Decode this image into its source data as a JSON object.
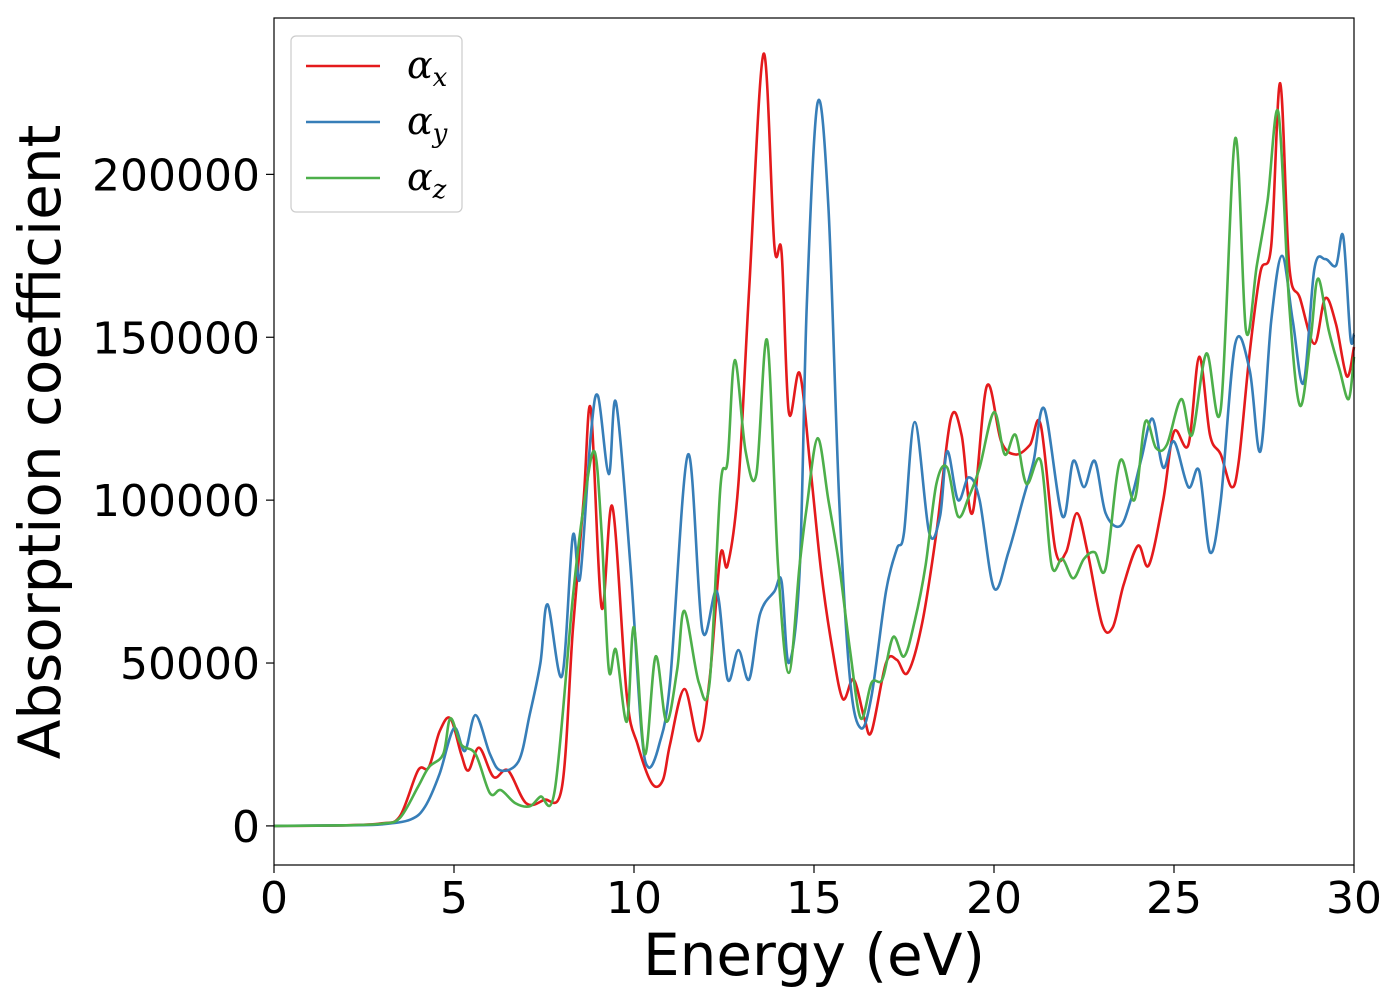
{
  "chart_data": {
    "type": "line",
    "title": "",
    "xlabel": "Energy (eV)",
    "ylabel": "Absorption coefficient",
    "xlim": [
      0,
      30
    ],
    "ylim": [
      -12000,
      248000
    ],
    "xticks": [
      0,
      5,
      10,
      15,
      20,
      25,
      30
    ],
    "yticks": [
      0,
      50000,
      100000,
      150000,
      200000
    ],
    "legend_position": "top-left",
    "series": [
      {
        "name": "αx",
        "symbol": "α",
        "subscript": "x",
        "color": "#e41a1c",
        "points": [
          [
            0,
            0
          ],
          [
            2,
            200
          ],
          [
            3,
            800
          ],
          [
            3.5,
            3000
          ],
          [
            4,
            17000
          ],
          [
            4.3,
            18000
          ],
          [
            4.6,
            29000
          ],
          [
            4.9,
            33000
          ],
          [
            5.2,
            22000
          ],
          [
            5.4,
            17000
          ],
          [
            5.7,
            24000
          ],
          [
            6.1,
            15000
          ],
          [
            6.5,
            17000
          ],
          [
            7,
            7000
          ],
          [
            7.5,
            8000
          ],
          [
            8,
            12000
          ],
          [
            8.3,
            60000
          ],
          [
            8.6,
            100000
          ],
          [
            8.8,
            128000
          ],
          [
            9.1,
            67000
          ],
          [
            9.4,
            98000
          ],
          [
            9.8,
            40000
          ],
          [
            10.1,
            25000
          ],
          [
            10.5,
            13000
          ],
          [
            10.8,
            14000
          ],
          [
            11,
            25000
          ],
          [
            11.4,
            42000
          ],
          [
            11.8,
            26000
          ],
          [
            12.1,
            45000
          ],
          [
            12.4,
            83000
          ],
          [
            12.6,
            80000
          ],
          [
            12.9,
            105000
          ],
          [
            13.2,
            165000
          ],
          [
            13.6,
            237000
          ],
          [
            13.9,
            178000
          ],
          [
            14.1,
            176000
          ],
          [
            14.3,
            127000
          ],
          [
            14.6,
            139000
          ],
          [
            14.9,
            110000
          ],
          [
            15.2,
            78000
          ],
          [
            15.5,
            55000
          ],
          [
            15.8,
            39000
          ],
          [
            16.1,
            45000
          ],
          [
            16.4,
            33000
          ],
          [
            16.6,
            29000
          ],
          [
            17,
            50000
          ],
          [
            17.3,
            51000
          ],
          [
            17.6,
            47000
          ],
          [
            18,
            62000
          ],
          [
            18.4,
            90000
          ],
          [
            18.8,
            125000
          ],
          [
            19.1,
            120000
          ],
          [
            19.4,
            96000
          ],
          [
            19.8,
            135000
          ],
          [
            20.2,
            118000
          ],
          [
            20.6,
            114000
          ],
          [
            21,
            117000
          ],
          [
            21.3,
            123000
          ],
          [
            21.7,
            85000
          ],
          [
            22,
            84000
          ],
          [
            22.3,
            96000
          ],
          [
            22.6,
            84000
          ],
          [
            23,
            62000
          ],
          [
            23.3,
            61000
          ],
          [
            23.6,
            74000
          ],
          [
            24,
            86000
          ],
          [
            24.3,
            80000
          ],
          [
            24.7,
            100000
          ],
          [
            25,
            121000
          ],
          [
            25.4,
            117000
          ],
          [
            25.7,
            144000
          ],
          [
            26,
            120000
          ],
          [
            26.3,
            114000
          ],
          [
            26.6,
            104000
          ],
          [
            26.8,
            112000
          ],
          [
            27.1,
            145000
          ],
          [
            27.4,
            170000
          ],
          [
            27.7,
            178000
          ],
          [
            27.95,
            228000
          ],
          [
            28.2,
            172000
          ],
          [
            28.5,
            162000
          ],
          [
            28.9,
            148000
          ],
          [
            29.2,
            162000
          ],
          [
            29.5,
            154000
          ],
          [
            29.8,
            138000
          ],
          [
            30,
            147000
          ]
        ]
      },
      {
        "name": "αy",
        "symbol": "α",
        "subscript": "y",
        "color": "#377eb8",
        "points": [
          [
            0,
            0
          ],
          [
            2,
            200
          ],
          [
            3,
            500
          ],
          [
            3.8,
            2000
          ],
          [
            4.2,
            6000
          ],
          [
            4.6,
            16000
          ],
          [
            5,
            30000
          ],
          [
            5.3,
            23000
          ],
          [
            5.6,
            34000
          ],
          [
            6,
            22000
          ],
          [
            6.3,
            17000
          ],
          [
            6.8,
            20000
          ],
          [
            7.1,
            34000
          ],
          [
            7.4,
            50000
          ],
          [
            7.6,
            68000
          ],
          [
            8,
            46000
          ],
          [
            8.3,
            89000
          ],
          [
            8.5,
            76000
          ],
          [
            8.8,
            120000
          ],
          [
            9,
            132000
          ],
          [
            9.3,
            108000
          ],
          [
            9.5,
            130000
          ],
          [
            9.9,
            80000
          ],
          [
            10.2,
            30000
          ],
          [
            10.4,
            18000
          ],
          [
            10.7,
            25000
          ],
          [
            11,
            44000
          ],
          [
            11.5,
            114000
          ],
          [
            11.9,
            60000
          ],
          [
            12.3,
            72000
          ],
          [
            12.6,
            45000
          ],
          [
            12.9,
            54000
          ],
          [
            13.2,
            45000
          ],
          [
            13.5,
            65000
          ],
          [
            13.9,
            72000
          ],
          [
            14.1,
            75000
          ],
          [
            14.3,
            50000
          ],
          [
            14.6,
            78000
          ],
          [
            14.8,
            160000
          ],
          [
            15.1,
            222000
          ],
          [
            15.4,
            190000
          ],
          [
            15.7,
            100000
          ],
          [
            16,
            45000
          ],
          [
            16.3,
            30000
          ],
          [
            16.6,
            40000
          ],
          [
            17,
            72000
          ],
          [
            17.3,
            85000
          ],
          [
            17.5,
            90000
          ],
          [
            17.8,
            124000
          ],
          [
            18.2,
            90000
          ],
          [
            18.5,
            95000
          ],
          [
            18.7,
            115000
          ],
          [
            19,
            100000
          ],
          [
            19.3,
            107000
          ],
          [
            19.6,
            100000
          ],
          [
            20,
            73000
          ],
          [
            20.4,
            84000
          ],
          [
            20.8,
            100000
          ],
          [
            21.1,
            112000
          ],
          [
            21.4,
            128000
          ],
          [
            21.9,
            95000
          ],
          [
            22.2,
            112000
          ],
          [
            22.5,
            104000
          ],
          [
            22.8,
            112000
          ],
          [
            23.1,
            96000
          ],
          [
            23.5,
            92000
          ],
          [
            23.8,
            100000
          ],
          [
            24.1,
            113000
          ],
          [
            24.4,
            125000
          ],
          [
            24.7,
            110000
          ],
          [
            25,
            118000
          ],
          [
            25.4,
            104000
          ],
          [
            25.7,
            109000
          ],
          [
            26,
            84000
          ],
          [
            26.3,
            100000
          ],
          [
            26.7,
            148000
          ],
          [
            27.1,
            140000
          ],
          [
            27.4,
            115000
          ],
          [
            27.7,
            155000
          ],
          [
            28,
            175000
          ],
          [
            28.3,
            155000
          ],
          [
            28.6,
            136000
          ],
          [
            28.9,
            171000
          ],
          [
            29.2,
            174000
          ],
          [
            29.5,
            172000
          ],
          [
            29.7,
            181000
          ],
          [
            29.9,
            150000
          ],
          [
            30,
            151000
          ]
        ]
      },
      {
        "name": "αz",
        "symbol": "α",
        "subscript": "z",
        "color": "#4daf4a",
        "points": [
          [
            0,
            0
          ],
          [
            2,
            200
          ],
          [
            3,
            700
          ],
          [
            3.5,
            2500
          ],
          [
            4,
            12000
          ],
          [
            4.3,
            18000
          ],
          [
            4.7,
            22000
          ],
          [
            4.9,
            33000
          ],
          [
            5.2,
            25000
          ],
          [
            5.6,
            22000
          ],
          [
            6,
            10000
          ],
          [
            6.3,
            11000
          ],
          [
            6.7,
            7000
          ],
          [
            7.1,
            6000
          ],
          [
            7.4,
            9000
          ],
          [
            7.8,
            11000
          ],
          [
            8.3,
            70000
          ],
          [
            8.6,
            98000
          ],
          [
            8.9,
            115000
          ],
          [
            9.1,
            90000
          ],
          [
            9.3,
            48000
          ],
          [
            9.5,
            54000
          ],
          [
            9.8,
            32000
          ],
          [
            10,
            61000
          ],
          [
            10.3,
            22000
          ],
          [
            10.6,
            52000
          ],
          [
            10.9,
            32000
          ],
          [
            11.2,
            48000
          ],
          [
            11.4,
            66000
          ],
          [
            11.8,
            44000
          ],
          [
            12.1,
            44000
          ],
          [
            12.4,
            104000
          ],
          [
            12.6,
            112000
          ],
          [
            12.8,
            143000
          ],
          [
            13.1,
            115000
          ],
          [
            13.4,
            108000
          ],
          [
            13.7,
            149000
          ],
          [
            14,
            80000
          ],
          [
            14.3,
            47000
          ],
          [
            14.6,
            80000
          ],
          [
            14.8,
            98000
          ],
          [
            15.1,
            119000
          ],
          [
            15.4,
            100000
          ],
          [
            15.7,
            80000
          ],
          [
            16,
            54000
          ],
          [
            16.3,
            33000
          ],
          [
            16.6,
            44000
          ],
          [
            16.9,
            45000
          ],
          [
            17.2,
            58000
          ],
          [
            17.5,
            52000
          ],
          [
            17.8,
            63000
          ],
          [
            18.1,
            80000
          ],
          [
            18.4,
            105000
          ],
          [
            18.7,
            110000
          ],
          [
            19,
            95000
          ],
          [
            19.3,
            101000
          ],
          [
            19.6,
            110000
          ],
          [
            20,
            127000
          ],
          [
            20.3,
            114000
          ],
          [
            20.6,
            120000
          ],
          [
            20.9,
            105000
          ],
          [
            21.3,
            112000
          ],
          [
            21.6,
            80000
          ],
          [
            21.9,
            82000
          ],
          [
            22.2,
            76000
          ],
          [
            22.5,
            82000
          ],
          [
            22.8,
            84000
          ],
          [
            23.1,
            79000
          ],
          [
            23.5,
            112000
          ],
          [
            23.9,
            100000
          ],
          [
            24.2,
            124000
          ],
          [
            24.5,
            116000
          ],
          [
            24.8,
            117000
          ],
          [
            25.2,
            131000
          ],
          [
            25.5,
            120000
          ],
          [
            25.9,
            145000
          ],
          [
            26.3,
            128000
          ],
          [
            26.7,
            211000
          ],
          [
            27,
            152000
          ],
          [
            27.3,
            172000
          ],
          [
            27.6,
            192000
          ],
          [
            27.9,
            219000
          ],
          [
            28.2,
            160000
          ],
          [
            28.5,
            129000
          ],
          [
            28.8,
            150000
          ],
          [
            29,
            168000
          ],
          [
            29.3,
            152000
          ],
          [
            29.6,
            140000
          ],
          [
            29.85,
            131000
          ],
          [
            30,
            144000
          ]
        ]
      }
    ]
  }
}
